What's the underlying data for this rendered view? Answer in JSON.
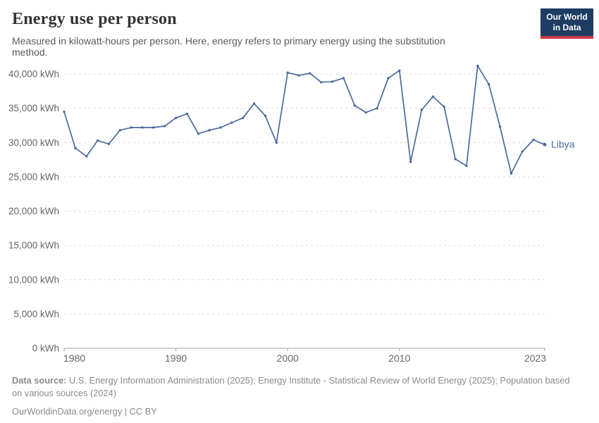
{
  "header": {
    "title": "Energy use per person",
    "subtitle": "Measured in kilowatt-hours per person. Here, energy refers to primary energy using the substitution method."
  },
  "logo": {
    "line1": "Our World",
    "line2": "in Data",
    "bg_color": "#1d3d63",
    "accent_color": "#cb3542"
  },
  "chart_data": {
    "type": "line",
    "title": "Energy use per person",
    "unit": "kWh",
    "entity_label": "Libya",
    "grid": "horizontal-dashed",
    "legend_position": "end-of-line-label",
    "ylim": [
      0,
      40000
    ],
    "xlim": [
      1980,
      2023
    ],
    "yticks": [
      0,
      5000,
      10000,
      15000,
      20000,
      25000,
      30000,
      35000,
      40000
    ],
    "ytick_labels": [
      "0 kWh",
      "5,000 kWh",
      "10,000 kWh",
      "15,000 kWh",
      "20,000 kWh",
      "25,000 kWh",
      "30,000 kWh",
      "35,000 kWh",
      "40,000 kWh"
    ],
    "xticks": [
      1980,
      1990,
      2000,
      2010,
      2023
    ],
    "xtick_labels": [
      "1980",
      "1990",
      "2000",
      "2010",
      "2023"
    ],
    "x": [
      1980,
      1981,
      1982,
      1983,
      1984,
      1985,
      1986,
      1987,
      1988,
      1989,
      1990,
      1991,
      1992,
      1993,
      1994,
      1995,
      1996,
      1997,
      1998,
      1999,
      2000,
      2001,
      2002,
      2003,
      2004,
      2005,
      2006,
      2007,
      2008,
      2009,
      2010,
      2011,
      2012,
      2013,
      2014,
      2015,
      2016,
      2017,
      2018,
      2019,
      2020,
      2021,
      2022,
      2023
    ],
    "series": [
      {
        "name": "Libya",
        "color": "#4c6a9c",
        "values": [
          34500,
          29200,
          28000,
          30300,
          29800,
          31800,
          32200,
          32200,
          32200,
          32400,
          33600,
          34200,
          31300,
          31800,
          32200,
          32900,
          33600,
          35700,
          33900,
          30000,
          40200,
          39800,
          40100,
          38800,
          38900,
          39400,
          35400,
          34400,
          35000,
          39400,
          40500,
          27200,
          34800,
          36700,
          35200,
          27600,
          26600,
          41200,
          38500,
          32300,
          25500,
          28700,
          30400,
          29700
        ]
      }
    ]
  },
  "footer": {
    "source_label": "Data source:",
    "source_text": "U.S. Energy Information Administration (2025); Energy Institute - Statistical Review of World Energy (2025); Population based on various sources (2024)",
    "link_text": "OurWorldinData.org/energy | CC BY"
  }
}
